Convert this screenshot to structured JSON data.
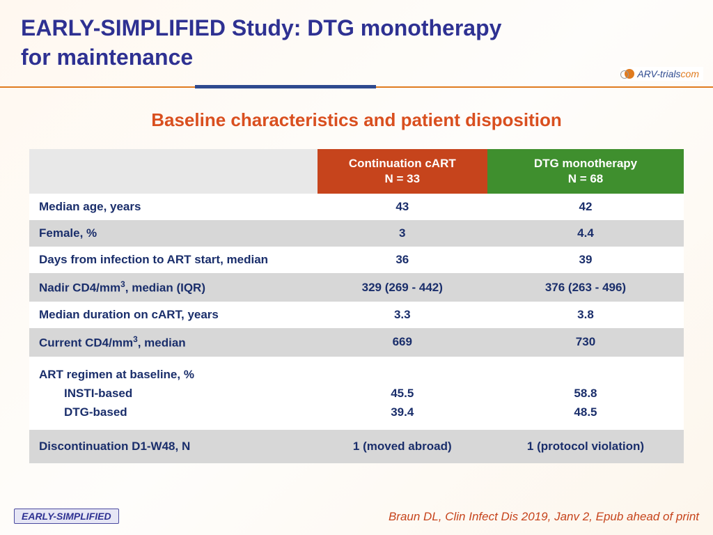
{
  "header": {
    "title_line1": "EARLY-SIMPLIFIED Study: DTG monotherapy",
    "title_line2": "for maintenance",
    "logo_text": "ARV-trials",
    "logo_suffix": "com"
  },
  "subtitle": "Baseline characteristics and patient disposition",
  "table": {
    "col_a_label": "Continuation cART",
    "col_a_n": "N = 33",
    "col_b_label": "DTG monotherapy",
    "col_b_n": "N = 68",
    "header_colors": {
      "blank": "#e8e8e8",
      "col_a": "#c6441c",
      "col_b": "#3f8f2e"
    },
    "row_colors": {
      "odd": "#ffffff",
      "even": "#d7d7d7"
    },
    "text_color": "#1a2e6b",
    "rows": [
      {
        "label": "Median age, years",
        "a": "43",
        "b": "42",
        "stripe": "odd"
      },
      {
        "label": "Female, %",
        "a": "3",
        "b": "4.4",
        "stripe": "even"
      },
      {
        "label": "Days from infection to ART start, median",
        "a": "36",
        "b": "39",
        "stripe": "odd"
      },
      {
        "label_html": "Nadir CD4/mm<span class=\"sup\">3</span>, median (IQR)",
        "a": "329 (269 - 442)",
        "b": "376 (263 - 496)",
        "stripe": "even"
      },
      {
        "label": "Median duration on cART, years",
        "a": "3.3",
        "b": "3.8",
        "stripe": "odd"
      },
      {
        "label_html": "Current CD4/mm<span class=\"sup\">3</span>, median",
        "a": "669",
        "b": "730",
        "stripe": "even"
      }
    ],
    "multi_row": {
      "label_main": "ART regimen at baseline, %",
      "sub1": "INSTI-based",
      "sub2": "DTG-based",
      "a1": "45.5",
      "a2": "39.4",
      "b1": "58.8",
      "b2": "48.5"
    },
    "last_row": {
      "label": "Discontinuation D1-W48, N",
      "a": "1 (moved abroad)",
      "b": "1 (protocol violation)"
    }
  },
  "footer": {
    "study_tag": "EARLY-SIMPLIFIED",
    "citation": "Braun DL, Clin Infect Dis 2019, Janv 2, Epub ahead of print"
  },
  "style": {
    "title_color": "#2e3192",
    "subtitle_color": "#d94f1f",
    "divider_orange": "#e07b1f",
    "divider_blue": "#2e4a8f",
    "citation_color": "#c6441c",
    "background_gradient": [
      "#fff8f0",
      "#fefdfb",
      "#fdf6ec"
    ],
    "title_fontsize": 32,
    "subtitle_fontsize": 26,
    "table_fontsize": 17
  }
}
